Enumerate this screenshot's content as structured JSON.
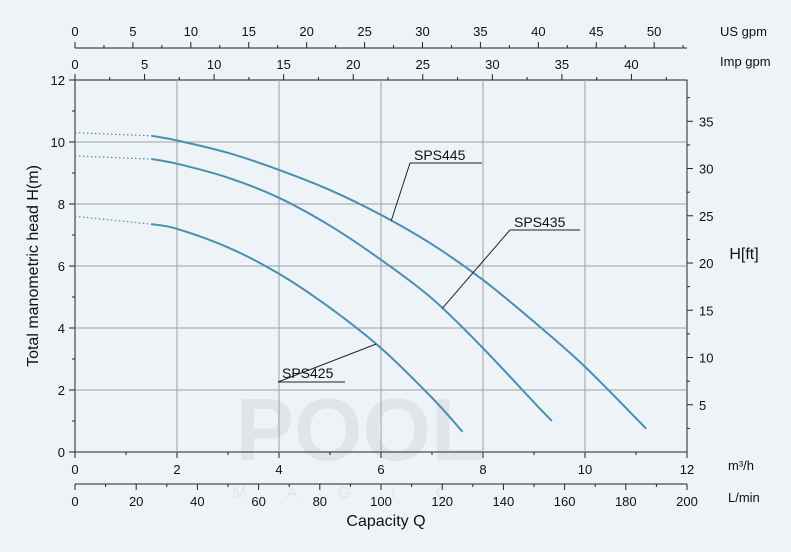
{
  "chart_data": {
    "type": "line",
    "ylabel_left": "Total manometric head H(m)",
    "ylabel_right": "H[ft]",
    "xlabel": "Capacity Q",
    "x_unit_m3h": "m³/h",
    "x_unit_lmin": "L/min",
    "x_unit_usgpm": "US gpm",
    "x_unit_impgpm": "Imp gpm",
    "xlim_m3h": [
      0,
      12
    ],
    "ylim_m": [
      0,
      12
    ],
    "ylim_ft": [
      0,
      39.37
    ],
    "ticks": {
      "m3h": [
        0,
        2,
        4,
        6,
        8,
        10,
        12
      ],
      "lmin": [
        0,
        20,
        40,
        60,
        80,
        100,
        120,
        140,
        160,
        180,
        200
      ],
      "usgpm": [
        0,
        5,
        10,
        15,
        20,
        25,
        30,
        35,
        40,
        45,
        50
      ],
      "impgpm": [
        0,
        5,
        10,
        15,
        20,
        25,
        30,
        35,
        40
      ],
      "head_m": [
        0,
        2,
        4,
        6,
        8,
        10,
        12
      ],
      "head_ft": [
        5,
        10,
        15,
        20,
        25,
        30,
        35
      ]
    },
    "grid": true,
    "series": [
      {
        "name": "SPS445",
        "color": "#4a8fb0",
        "x": [
          0,
          1.5,
          2,
          3,
          4,
          5,
          6,
          7,
          8,
          9,
          10,
          11.2
        ],
        "y": [
          10.3,
          10.2,
          10.05,
          9.65,
          9.1,
          8.45,
          7.65,
          6.7,
          5.55,
          4.2,
          2.75,
          0.75
        ],
        "dotted_until": 1.5,
        "label_pos": "upper-middle"
      },
      {
        "name": "SPS435",
        "color": "#4a8fb0",
        "x": [
          0,
          1.5,
          2,
          3,
          4,
          5,
          6,
          7,
          8,
          9,
          9.35
        ],
        "y": [
          9.55,
          9.45,
          9.3,
          8.85,
          8.2,
          7.3,
          6.2,
          4.95,
          3.35,
          1.6,
          1.0
        ],
        "dotted_until": 1.5,
        "label_pos": "right-middle"
      },
      {
        "name": "SPS425",
        "color": "#4a8fb0",
        "x": [
          0,
          1.5,
          2,
          3,
          4,
          5,
          6,
          7,
          7.6
        ],
        "y": [
          7.6,
          7.35,
          7.2,
          6.6,
          5.75,
          4.65,
          3.35,
          1.75,
          0.65
        ],
        "dotted_until": 1.5,
        "label_pos": "lower-middle"
      }
    ]
  },
  "watermark": {
    "main": "POOL",
    "sub": "MAGIC"
  }
}
